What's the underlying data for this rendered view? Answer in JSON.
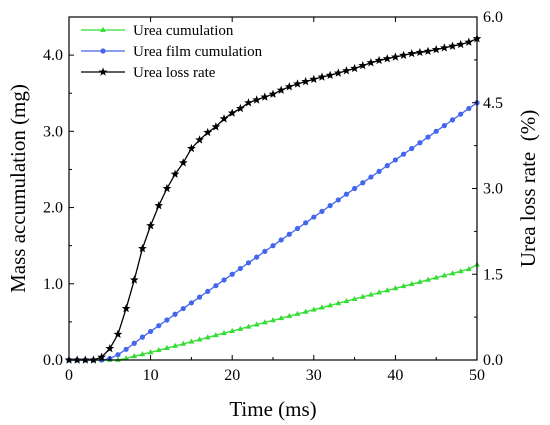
{
  "chart_data": {
    "type": "line",
    "xlabel": "Time (ms)",
    "ylabel_left": "Mass accumulation (mg)",
    "ylabel_right": "Urea loss rate  (%)",
    "xlim": [
      0,
      50
    ],
    "ylim_left": [
      0,
      4.5
    ],
    "ylim_right": [
      0,
      6.0
    ],
    "x_ticks": [
      0,
      10,
      20,
      30,
      40,
      50
    ],
    "x_tick_labels": [
      "0",
      "10",
      "20",
      "30",
      "40",
      "50"
    ],
    "y_left_ticks": [
      0,
      1,
      2,
      3,
      4
    ],
    "y_left_tick_labels": [
      "0.0",
      "1.0",
      "2.0",
      "3.0",
      "4.0"
    ],
    "y_right_ticks": [
      0,
      1.5,
      3.0,
      4.5,
      6.0
    ],
    "y_right_tick_labels": [
      "0.0",
      "1.5",
      "3.0",
      "4.5",
      "6.0"
    ],
    "legend_position": "top-left",
    "grid": false,
    "series": [
      {
        "name": "Urea cumulation",
        "axis": "left",
        "color": "#33dd33",
        "marker": "triangle",
        "x": [
          0,
          1,
          2,
          3,
          4,
          5,
          6,
          7,
          8,
          9,
          10,
          11,
          12,
          13,
          14,
          15,
          16,
          17,
          18,
          19,
          20,
          21,
          22,
          23,
          24,
          25,
          26,
          27,
          28,
          29,
          30,
          31,
          32,
          33,
          34,
          35,
          36,
          37,
          38,
          39,
          40,
          41,
          42,
          43,
          44,
          45,
          46,
          47,
          48,
          49,
          50
        ],
        "values": [
          0,
          0,
          0,
          0,
          0,
          0,
          0,
          0.02,
          0.05,
          0.075,
          0.1,
          0.128,
          0.156,
          0.184,
          0.212,
          0.24,
          0.268,
          0.296,
          0.324,
          0.352,
          0.38,
          0.408,
          0.436,
          0.464,
          0.492,
          0.52,
          0.548,
          0.576,
          0.604,
          0.632,
          0.66,
          0.688,
          0.716,
          0.744,
          0.772,
          0.8,
          0.828,
          0.856,
          0.884,
          0.912,
          0.94,
          0.968,
          0.996,
          1.024,
          1.052,
          1.08,
          1.108,
          1.136,
          1.164,
          1.192,
          1.25
        ]
      },
      {
        "name": "Urea film cumulation",
        "axis": "left",
        "color": "#4466ee",
        "marker": "circle",
        "x": [
          0,
          1,
          2,
          3,
          4,
          5,
          6,
          7,
          8,
          9,
          10,
          11,
          12,
          13,
          14,
          15,
          16,
          17,
          18,
          19,
          20,
          21,
          22,
          23,
          24,
          25,
          26,
          27,
          28,
          29,
          30,
          31,
          32,
          33,
          34,
          35,
          36,
          37,
          38,
          39,
          40,
          41,
          42,
          43,
          44,
          45,
          46,
          47,
          48,
          49,
          50
        ],
        "values": [
          0,
          0,
          0,
          0,
          0,
          0.02,
          0.07,
          0.14,
          0.22,
          0.3,
          0.375,
          0.45,
          0.525,
          0.6,
          0.675,
          0.75,
          0.825,
          0.9,
          0.975,
          1.05,
          1.125,
          1.2,
          1.275,
          1.35,
          1.425,
          1.5,
          1.575,
          1.65,
          1.725,
          1.8,
          1.875,
          1.95,
          2.025,
          2.1,
          2.175,
          2.25,
          2.325,
          2.4,
          2.475,
          2.55,
          2.625,
          2.7,
          2.775,
          2.85,
          2.925,
          3.0,
          3.075,
          3.15,
          3.225,
          3.3,
          3.375
        ]
      },
      {
        "name": "Urea loss rate",
        "axis": "right",
        "color": "#000000",
        "marker": "star",
        "x": [
          0,
          1,
          2,
          3,
          4,
          5,
          6,
          7,
          8,
          9,
          10,
          11,
          12,
          13,
          14,
          15,
          16,
          17,
          18,
          19,
          20,
          21,
          22,
          23,
          24,
          25,
          26,
          27,
          28,
          29,
          30,
          31,
          32,
          33,
          34,
          35,
          36,
          37,
          38,
          39,
          40,
          41,
          42,
          43,
          44,
          45,
          46,
          47,
          48,
          49,
          50
        ],
        "values": [
          0,
          0,
          0,
          0,
          0.05,
          0.2,
          0.45,
          0.9,
          1.4,
          1.95,
          2.35,
          2.7,
          3.0,
          3.25,
          3.45,
          3.7,
          3.85,
          3.98,
          4.08,
          4.22,
          4.32,
          4.4,
          4.5,
          4.55,
          4.6,
          4.65,
          4.72,
          4.78,
          4.83,
          4.87,
          4.91,
          4.95,
          4.98,
          5.02,
          5.06,
          5.1,
          5.15,
          5.2,
          5.24,
          5.27,
          5.3,
          5.33,
          5.36,
          5.38,
          5.4,
          5.43,
          5.46,
          5.49,
          5.52,
          5.56,
          5.62
        ]
      }
    ]
  }
}
